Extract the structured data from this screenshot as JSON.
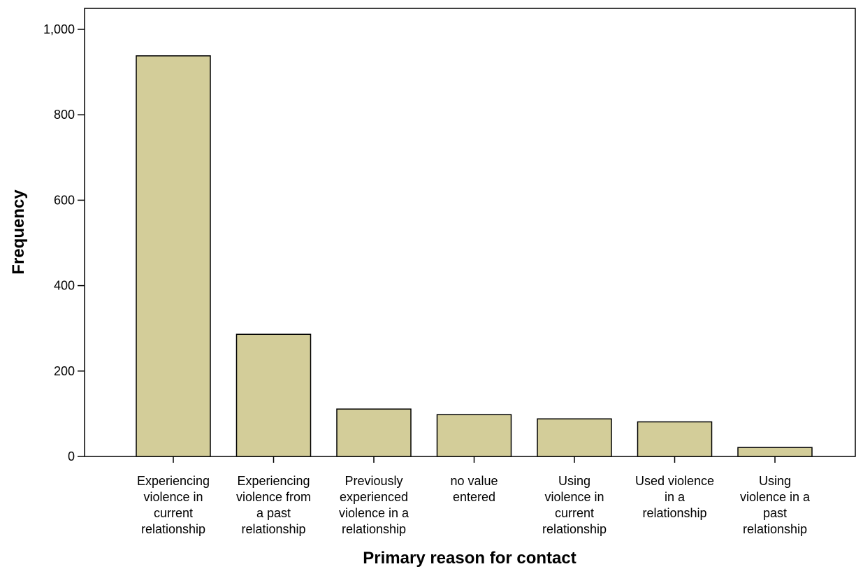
{
  "chart_data": {
    "type": "bar",
    "title": "",
    "xlabel": "Primary reason for contact",
    "ylabel": "Frequency",
    "ylim": [
      0,
      1000
    ],
    "yticks": [
      0,
      200,
      400,
      600,
      800,
      1000
    ],
    "ytick_labels": [
      "0",
      "200",
      "400",
      "600",
      "800",
      "1,000"
    ],
    "categories": [
      [
        "Experiencing",
        "violence in",
        "current",
        "relationship"
      ],
      [
        "Experiencing",
        "violence from",
        "a past",
        "relationship"
      ],
      [
        "Previously",
        "experienced",
        "violence in a",
        "relationship"
      ],
      [
        "no value",
        "entered"
      ],
      [
        "Using",
        "violence in",
        "current",
        "relationship"
      ],
      [
        "Used violence",
        "in a",
        "relationship"
      ],
      [
        "Using",
        "violence in a",
        "past",
        "relationship"
      ]
    ],
    "values": [
      938,
      286,
      111,
      98,
      88,
      81,
      21
    ],
    "bar_color": "#d3cd99",
    "grid": false,
    "legend": "none"
  }
}
